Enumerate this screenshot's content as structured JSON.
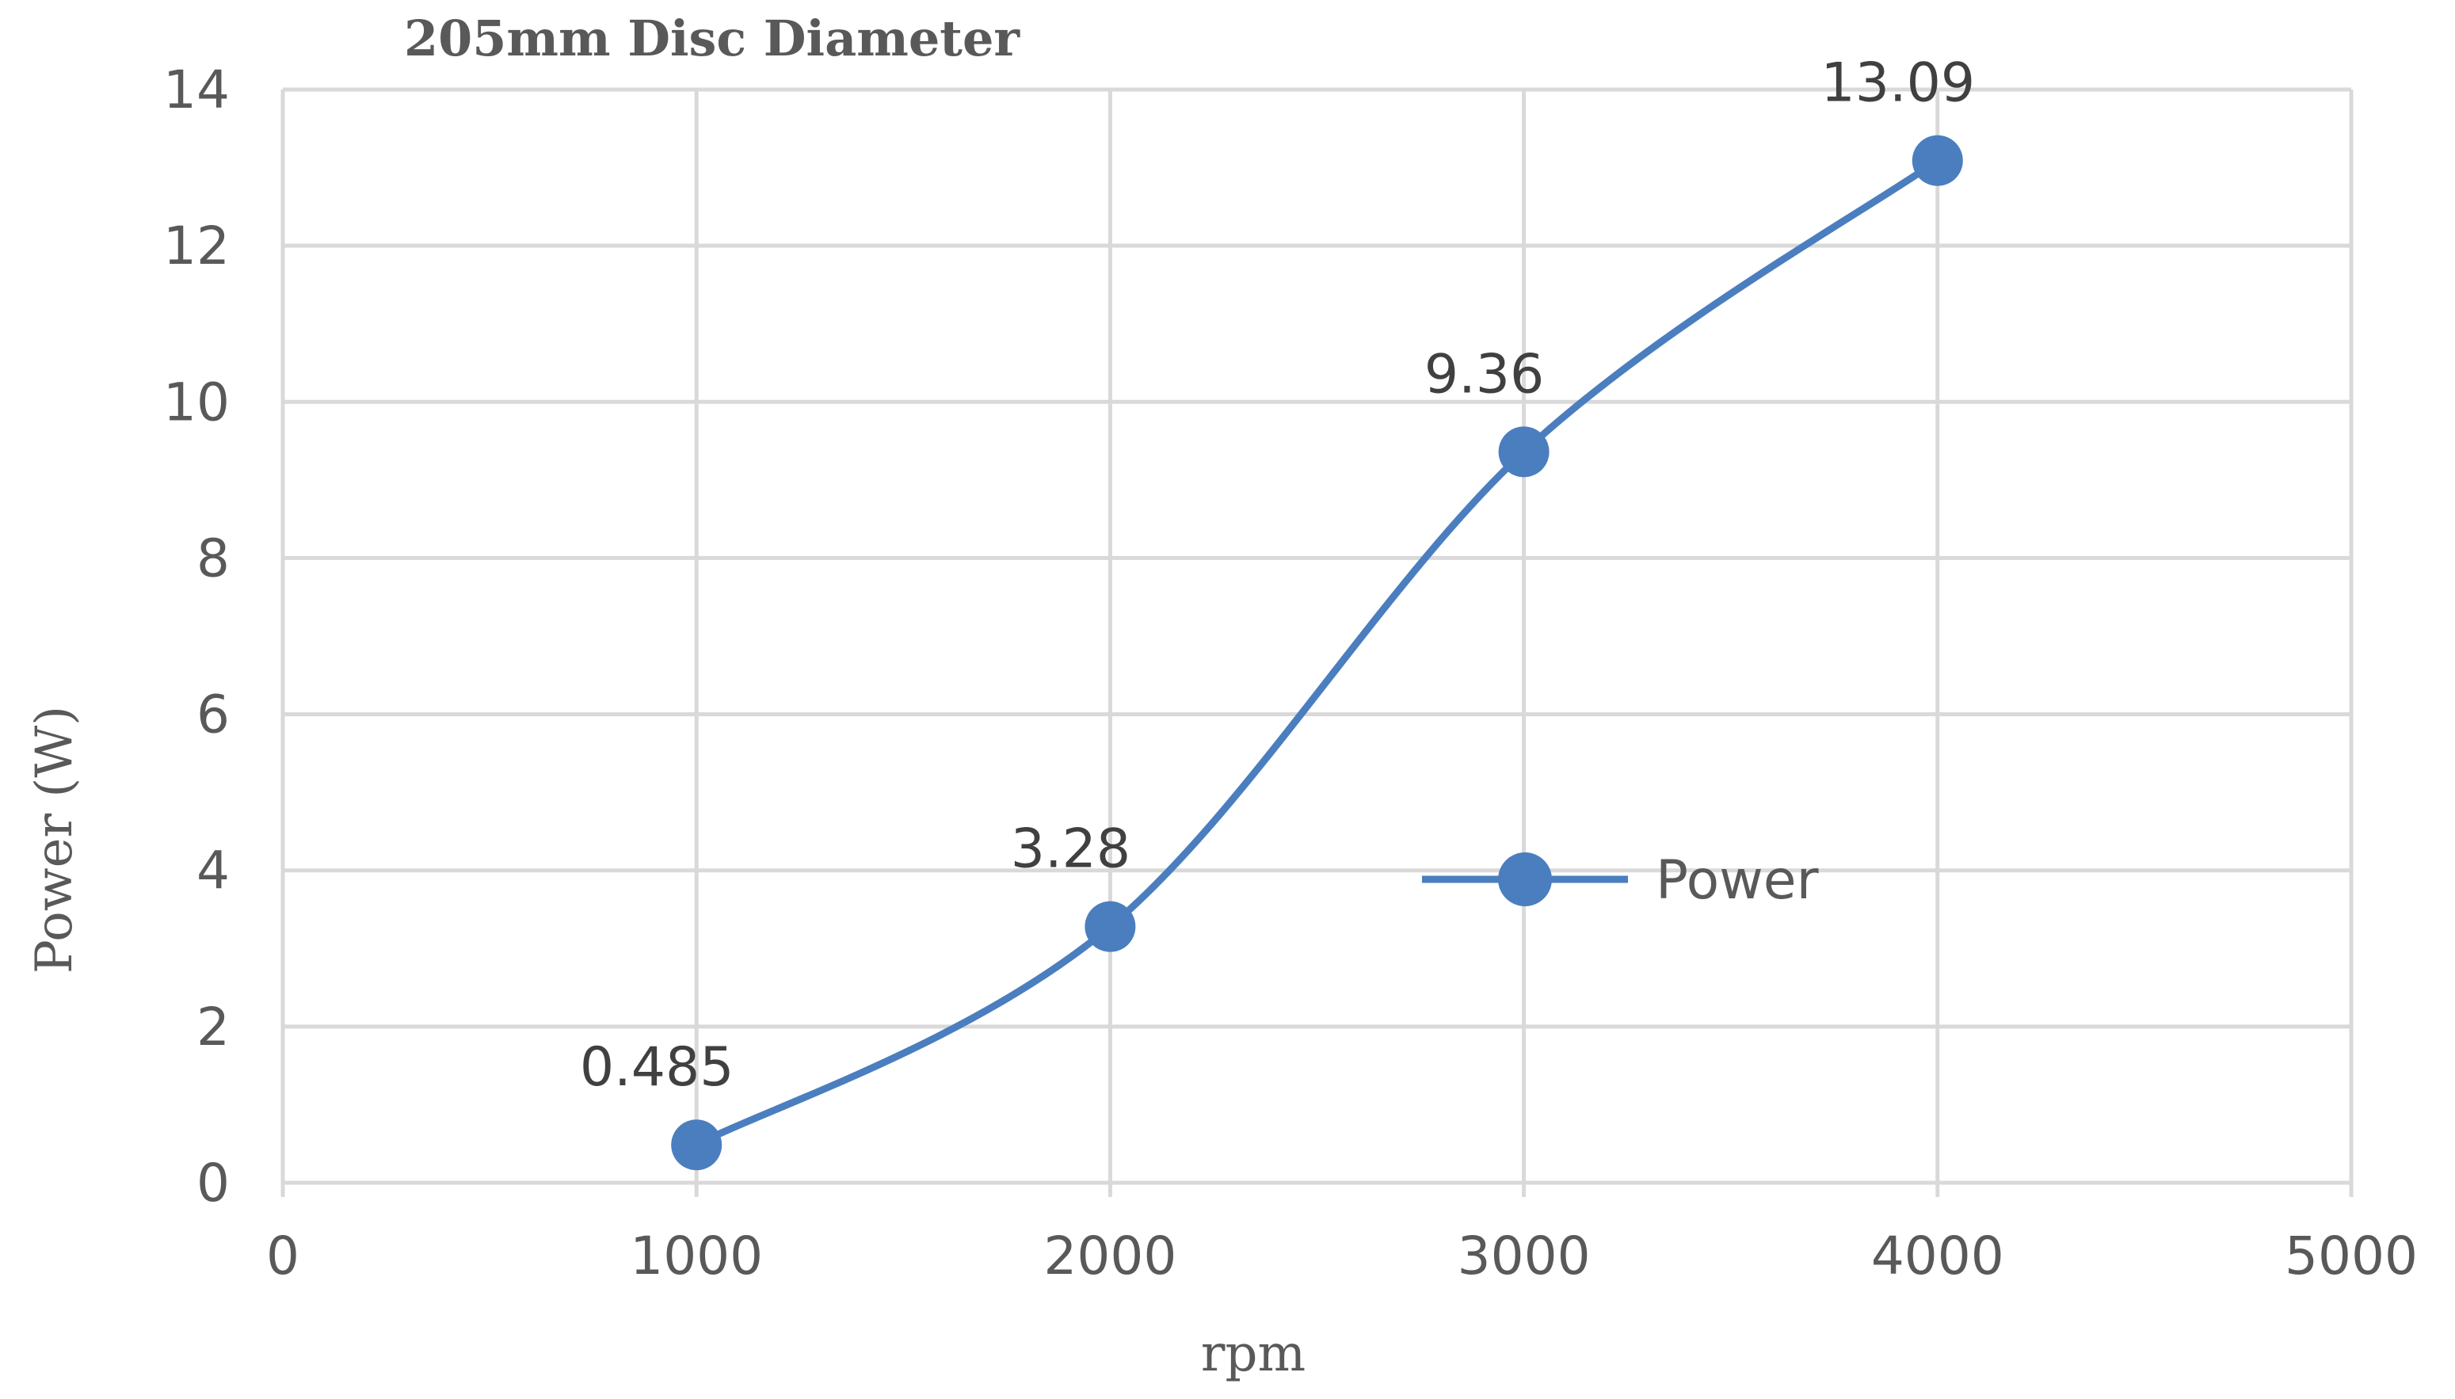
{
  "chart_data": {
    "type": "line",
    "title": "205mm Disc Diameter",
    "xlabel": "rpm",
    "ylabel": "Power (W)",
    "xlim": [
      0,
      5000
    ],
    "ylim": [
      0,
      14
    ],
    "x_ticks": [
      "0",
      "1000",
      "2000",
      "3000",
      "4000",
      "5000"
    ],
    "y_ticks": [
      "0",
      "2",
      "4",
      "6",
      "8",
      "10",
      "12",
      "14"
    ],
    "grid": true,
    "legend_placement": "center-right",
    "smooth": true,
    "series": [
      {
        "name": "Power",
        "color": "#4a7ebf",
        "x": [
          1000,
          2000,
          3000,
          4000
        ],
        "y": [
          0.485,
          3.28,
          9.36,
          13.09
        ],
        "labels": [
          "0.485",
          "3.28",
          "9.36",
          "13.09"
        ]
      }
    ]
  }
}
